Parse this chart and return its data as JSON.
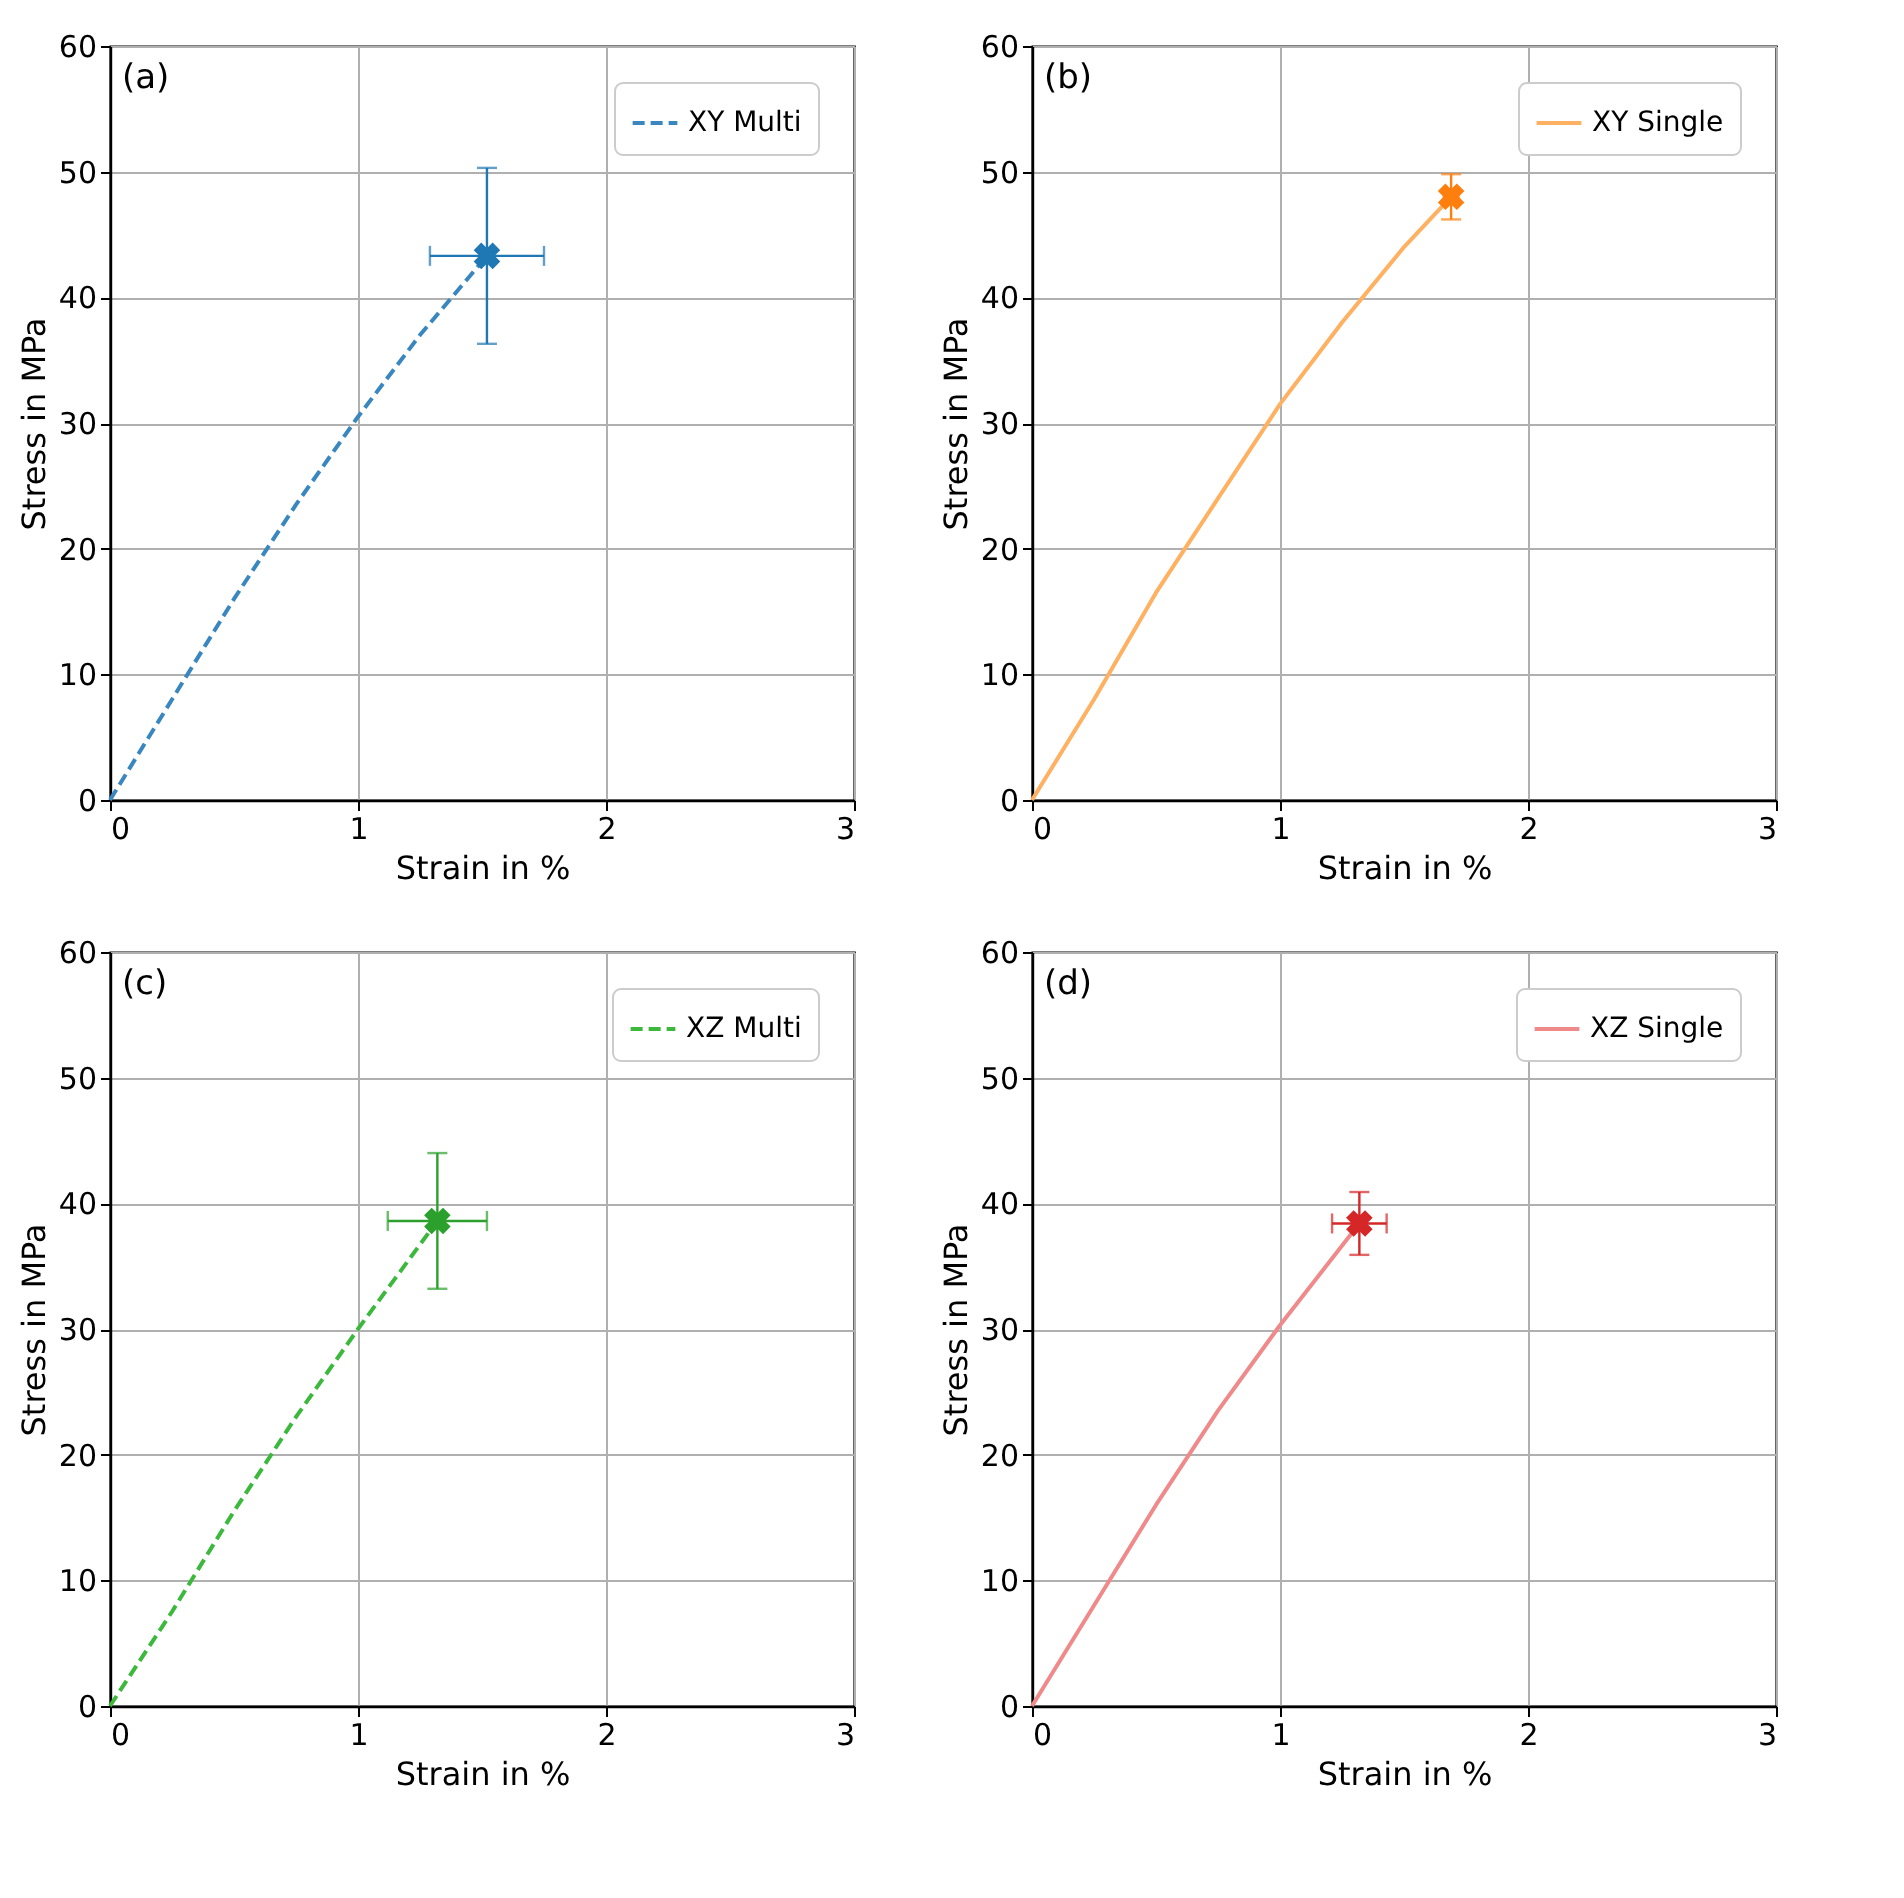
{
  "chart_data": [
    {
      "type": "line",
      "annotations": [
        "(a)"
      ],
      "xlabel": "Strain in %",
      "ylabel": "Stress in MPa",
      "xlim": [
        0,
        3
      ],
      "ylim": [
        0,
        60
      ],
      "xticks": [
        0,
        1,
        2,
        3
      ],
      "yticks": [
        0,
        10,
        20,
        30,
        40,
        50,
        60
      ],
      "grid": true,
      "legend": "top right",
      "series": [
        {
          "name": "XY Multi",
          "line_style": "dashed",
          "color": "#3a87c0",
          "x": [
            0,
            0.25,
            0.5,
            0.75,
            1,
            1.25,
            1.52
          ],
          "values": [
            0,
            8,
            16,
            23.5,
            30.5,
            37,
            43.3
          ]
        },
        {
          "type": "scatter",
          "marker": "cross",
          "color": "#1f77b4",
          "x": [
            1.52
          ],
          "values": [
            43.3
          ],
          "errors": [
            7
          ],
          "xerrors": [
            0.23
          ]
        }
      ]
    },
    {
      "type": "line",
      "annotations": [
        "(b)"
      ],
      "xlabel": "Strain in %",
      "ylabel": "Stress in MPa",
      "xlim": [
        0,
        3
      ],
      "ylim": [
        0,
        60
      ],
      "xticks": [
        0,
        1,
        2,
        3
      ],
      "yticks": [
        0,
        10,
        20,
        30,
        40,
        50,
        60
      ],
      "grid": true,
      "legend": "top right",
      "series": [
        {
          "name": "XY Single",
          "line_style": "solid",
          "color": "#ffb060",
          "x": [
            0,
            0.25,
            0.5,
            0.75,
            1,
            1.25,
            1.5,
            1.69
          ],
          "values": [
            0,
            8,
            16.5,
            24,
            31.5,
            38,
            44,
            48
          ]
        },
        {
          "type": "scatter",
          "marker": "cross",
          "color": "#ff7f0e",
          "x": [
            1.69
          ],
          "values": [
            48
          ],
          "errors": [
            1.8
          ],
          "xerrors": [
            0.03
          ]
        }
      ]
    },
    {
      "type": "line",
      "annotations": [
        "(c)"
      ],
      "xlabel": "Strain in %",
      "ylabel": "Stress in MPa",
      "xlim": [
        0,
        3
      ],
      "ylim": [
        0,
        60
      ],
      "xticks": [
        0,
        1,
        2,
        3
      ],
      "yticks": [
        0,
        10,
        20,
        30,
        40,
        50,
        60
      ],
      "grid": true,
      "legend": "top right",
      "series": [
        {
          "name": "XZ Multi",
          "line_style": "dashed",
          "color": "#3cb83c",
          "x": [
            0,
            0.25,
            0.5,
            0.75,
            1,
            1.32
          ],
          "values": [
            0,
            7.5,
            15.5,
            23,
            30,
            38.6
          ]
        },
        {
          "type": "scatter",
          "marker": "cross",
          "color": "#2ca02c",
          "x": [
            1.32
          ],
          "values": [
            38.6
          ],
          "errors": [
            5.4
          ],
          "xerrors": [
            0.2
          ]
        }
      ]
    },
    {
      "type": "line",
      "annotations": [
        "(d)"
      ],
      "xlabel": "Strain in %",
      "ylabel": "Stress in MPa",
      "xlim": [
        0,
        3
      ],
      "ylim": [
        0,
        60
      ],
      "xticks": [
        0,
        1,
        2,
        3
      ],
      "yticks": [
        0,
        10,
        20,
        30,
        40,
        50,
        60
      ],
      "grid": true,
      "legend": "top right",
      "series": [
        {
          "name": "XZ Single",
          "line_style": "solid",
          "color": "#f08a8a",
          "x": [
            0,
            0.25,
            0.5,
            0.75,
            1,
            1.32
          ],
          "values": [
            0,
            8,
            16,
            23.5,
            30.3,
            38.4
          ]
        },
        {
          "type": "scatter",
          "marker": "cross",
          "color": "#d62728",
          "x": [
            1.32
          ],
          "values": [
            38.4
          ],
          "errors": [
            2.5
          ],
          "xerrors": [
            0.11
          ]
        }
      ]
    }
  ]
}
